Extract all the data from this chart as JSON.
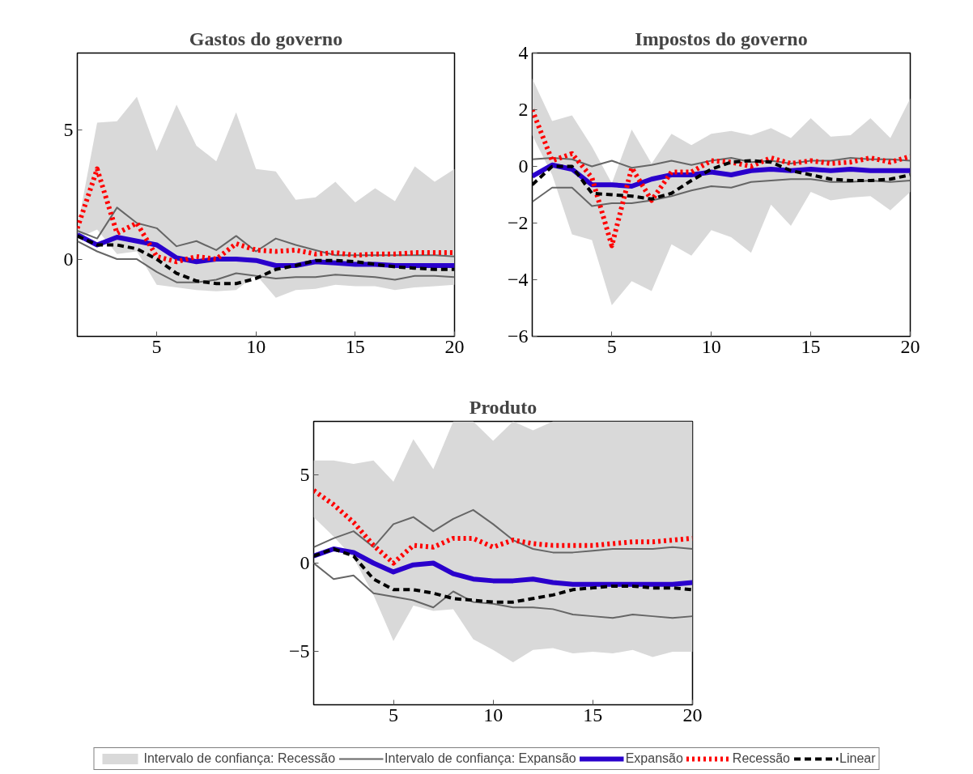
{
  "chart_data": [
    {
      "type": "line",
      "title": "Gastos do governo",
      "x": [
        1,
        2,
        3,
        4,
        5,
        6,
        7,
        8,
        9,
        10,
        11,
        12,
        13,
        14,
        15,
        16,
        17,
        18,
        19,
        20
      ],
      "xlim": [
        1,
        20
      ],
      "xticks": [
        5,
        10,
        15,
        20
      ],
      "ylim": [
        -3,
        8
      ],
      "yticks": [
        0,
        5
      ],
      "grid": false,
      "marker": "none",
      "series": [
        {
          "type": "area",
          "color": "#d9d9d9",
          "values": [
            null,
            null,
            null,
            null,
            null,
            null,
            null,
            null,
            null,
            null,
            null,
            null,
            null,
            null,
            null,
            null,
            null,
            null,
            null,
            null
          ],
          "lower": [
            0.8,
            1.15,
            0.2,
            0.3,
            -1.0,
            -1.1,
            -1.2,
            -1.25,
            -1.2,
            -0.6,
            -1.5,
            -1.2,
            -1.15,
            -1.0,
            -1.05,
            -1.05,
            -1.2,
            -1.1,
            -1.05,
            -1.0
          ],
          "upper": [
            1.2,
            5.3,
            5.35,
            6.3,
            4.2,
            6.0,
            4.4,
            3.8,
            5.7,
            3.5,
            3.4,
            2.3,
            2.4,
            3.0,
            2.2,
            2.75,
            2.25,
            3.6,
            3.0,
            3.5
          ]
        },
        {
          "line_style": "solid",
          "color": "#666666",
          "values": [
            1.1,
            0.8,
            2.0,
            1.4,
            1.2,
            0.5,
            0.7,
            0.35,
            0.9,
            0.3,
            0.8,
            0.55,
            0.35,
            0.15,
            0.15,
            0.15,
            0.15,
            0.15,
            0.15,
            0.1
          ]
        },
        {
          "line_style": "solid",
          "color": "#666666",
          "values": [
            0.7,
            0.3,
            0.0,
            0.0,
            -0.5,
            -0.9,
            -0.9,
            -0.8,
            -0.55,
            -0.65,
            -0.75,
            -0.7,
            -0.7,
            -0.6,
            -0.65,
            -0.7,
            -0.8,
            -0.65,
            -0.65,
            -0.7
          ]
        },
        {
          "line_style": "solid",
          "color": "#2a00cc",
          "values": [
            0.95,
            0.55,
            0.85,
            0.7,
            0.55,
            0.05,
            -0.1,
            0.0,
            0.0,
            -0.05,
            -0.25,
            -0.25,
            -0.1,
            -0.15,
            -0.2,
            -0.2,
            -0.25,
            -0.25,
            -0.25,
            -0.25
          ]
        },
        {
          "line_style": "dotted",
          "color": "#ff0000",
          "values": [
            1.2,
            3.5,
            1.0,
            1.4,
            0.1,
            -0.1,
            0.1,
            0.0,
            0.6,
            0.35,
            0.3,
            0.35,
            0.2,
            0.25,
            0.15,
            0.2,
            0.2,
            0.25,
            0.25,
            0.25
          ]
        },
        {
          "line_style": "dashed",
          "color": "#000000",
          "values": [
            0.9,
            0.55,
            0.55,
            0.4,
            0.0,
            -0.55,
            -0.85,
            -0.95,
            -0.95,
            -0.75,
            -0.4,
            -0.25,
            -0.05,
            -0.05,
            -0.1,
            -0.2,
            -0.3,
            -0.35,
            -0.4,
            -0.4
          ]
        }
      ]
    },
    {
      "type": "line",
      "title": "Impostos do governo",
      "x": [
        1,
        2,
        3,
        4,
        5,
        6,
        7,
        8,
        9,
        10,
        11,
        12,
        13,
        14,
        15,
        16,
        17,
        18,
        19,
        20
      ],
      "xlim": [
        1,
        20
      ],
      "xticks": [
        5,
        10,
        15,
        20
      ],
      "ylim": [
        -6,
        4
      ],
      "yticks": [
        {
          "value": -6,
          "label": "−6"
        },
        {
          "value": -4,
          "label": "−4"
        },
        {
          "value": -2,
          "label": "−2"
        },
        0,
        2,
        4
      ],
      "grid": false,
      "marker": "none",
      "series": [
        {
          "type": "area",
          "color": "#d9d9d9",
          "values": [
            null,
            null,
            null,
            null,
            null,
            null,
            null,
            null,
            null,
            null,
            null,
            null,
            null,
            null,
            null,
            null,
            null,
            null,
            null,
            null
          ],
          "lower": [
            1.1,
            -0.3,
            -2.4,
            -2.6,
            -4.9,
            -4.05,
            -4.4,
            -2.75,
            -3.15,
            -2.25,
            -2.5,
            -3.05,
            -1.35,
            -2.1,
            -0.9,
            -1.2,
            -1.1,
            -1.05,
            -1.55,
            -0.9
          ],
          "upper": [
            3.1,
            1.6,
            1.8,
            0.7,
            -0.6,
            1.3,
            0.1,
            1.15,
            0.75,
            1.15,
            1.25,
            1.1,
            1.35,
            1.0,
            1.7,
            1.05,
            1.1,
            1.7,
            1.0,
            2.4
          ]
        },
        {
          "line_style": "solid",
          "color": "#666666",
          "values": [
            0.25,
            0.3,
            0.25,
            0.0,
            0.2,
            -0.05,
            0.05,
            0.2,
            0.05,
            0.2,
            0.3,
            0.15,
            0.2,
            0.1,
            0.2,
            0.2,
            0.3,
            0.25,
            0.25,
            0.2
          ]
        },
        {
          "line_style": "solid",
          "color": "#666666",
          "values": [
            -1.25,
            -0.75,
            -0.75,
            -1.4,
            -1.3,
            -1.3,
            -1.2,
            -1.05,
            -0.85,
            -0.7,
            -0.75,
            -0.55,
            -0.5,
            -0.45,
            -0.45,
            -0.55,
            -0.55,
            -0.5,
            -0.55,
            -0.5
          ]
        },
        {
          "line_style": "solid",
          "color": "#2a00cc",
          "values": [
            -0.35,
            0.05,
            -0.1,
            -0.65,
            -0.65,
            -0.7,
            -0.45,
            -0.3,
            -0.3,
            -0.2,
            -0.3,
            -0.15,
            -0.1,
            -0.15,
            -0.1,
            -0.15,
            -0.1,
            -0.15,
            -0.15,
            -0.15
          ]
        },
        {
          "line_style": "dotted",
          "color": "#ff0000",
          "values": [
            2.0,
            0.2,
            0.45,
            -0.4,
            -2.8,
            -0.05,
            -1.2,
            -0.2,
            -0.2,
            0.2,
            0.15,
            0.0,
            0.3,
            0.1,
            0.2,
            0.1,
            0.15,
            0.3,
            0.15,
            0.35
          ]
        },
        {
          "line_style": "dashed",
          "color": "#000000",
          "values": [
            -0.65,
            0.0,
            0.0,
            -0.95,
            -1.0,
            -1.05,
            -1.15,
            -0.95,
            -0.5,
            -0.1,
            0.15,
            0.2,
            0.15,
            -0.15,
            -0.3,
            -0.45,
            -0.5,
            -0.5,
            -0.45,
            -0.3
          ]
        }
      ]
    },
    {
      "type": "line",
      "title": "Produto",
      "x": [
        1,
        2,
        3,
        4,
        5,
        6,
        7,
        8,
        9,
        10,
        11,
        12,
        13,
        14,
        15,
        16,
        17,
        18,
        19,
        20
      ],
      "xlim": [
        1,
        20
      ],
      "xticks": [
        5,
        10,
        15,
        20
      ],
      "ylim": [
        -8,
        8
      ],
      "yticks": [
        {
          "value": -5,
          "label": "−5"
        },
        0,
        5
      ],
      "grid": false,
      "marker": "none",
      "legend": "bottom",
      "series": [
        {
          "name": "Intervalo de confiança: Recessão",
          "type": "area",
          "color": "#d9d9d9",
          "values": [
            null,
            null,
            null,
            null,
            null,
            null,
            null,
            null,
            null,
            null,
            null,
            null,
            null,
            null,
            null,
            null,
            null,
            null,
            null,
            null
          ],
          "lower": [
            2.6,
            1.5,
            0.3,
            -1.8,
            -4.4,
            -2.4,
            -2.7,
            -2.6,
            -4.3,
            -4.9,
            -5.6,
            -4.9,
            -4.8,
            -5.1,
            -5.0,
            -5.1,
            -4.9,
            -5.3,
            -5.0,
            -5.0
          ],
          "upper": [
            5.8,
            5.8,
            5.6,
            5.8,
            4.6,
            7.0,
            5.3,
            8,
            8,
            6.9,
            8,
            7.5,
            8,
            8,
            8,
            8,
            8,
            8,
            8,
            8
          ]
        },
        {
          "name": "Intervalo de confiança: Expansão",
          "line_style": "solid",
          "color": "#666666",
          "values": [
            0.9,
            1.4,
            1.8,
            0.9,
            2.2,
            2.6,
            1.8,
            2.5,
            3.0,
            2.2,
            1.3,
            0.8,
            0.6,
            0.6,
            0.7,
            0.8,
            0.8,
            0.8,
            0.9,
            0.8
          ]
        },
        {
          "line_style": "solid",
          "color": "#666666",
          "values": [
            0.0,
            -0.9,
            -0.7,
            -1.7,
            -1.9,
            -2.1,
            -2.5,
            -1.6,
            -2.2,
            -2.3,
            -2.5,
            -2.5,
            -2.6,
            -2.9,
            -3.0,
            -3.1,
            -2.9,
            -3.0,
            -3.1,
            -3.0
          ]
        },
        {
          "name": "Expansão",
          "line_style": "solid",
          "color": "#2a00cc",
          "values": [
            0.4,
            0.8,
            0.6,
            0.0,
            -0.5,
            -0.1,
            0.0,
            -0.6,
            -0.9,
            -1.0,
            -1.0,
            -0.9,
            -1.1,
            -1.2,
            -1.2,
            -1.2,
            -1.2,
            -1.2,
            -1.2,
            -1.1
          ]
        },
        {
          "name": "Recessão",
          "line_style": "dotted",
          "color": "#ff0000",
          "values": [
            4.1,
            3.3,
            2.3,
            1.0,
            0.0,
            1.0,
            0.9,
            1.4,
            1.4,
            0.9,
            1.3,
            1.1,
            1.0,
            1.0,
            1.0,
            1.1,
            1.2,
            1.2,
            1.3,
            1.4
          ]
        },
        {
          "name": "Linear",
          "line_style": "dashed",
          "color": "#000000",
          "values": [
            0.4,
            0.8,
            0.4,
            -0.9,
            -1.5,
            -1.5,
            -1.7,
            -2.0,
            -2.1,
            -2.2,
            -2.2,
            -2.0,
            -1.8,
            -1.5,
            -1.4,
            -1.3,
            -1.3,
            -1.4,
            -1.4,
            -1.5
          ]
        }
      ]
    }
  ]
}
